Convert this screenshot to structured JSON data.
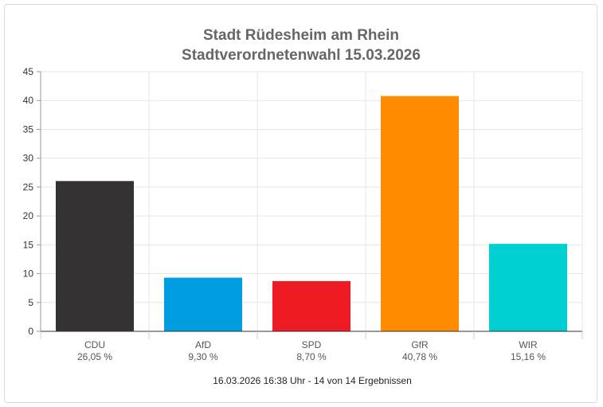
{
  "chart_data": {
    "type": "bar",
    "title": "Stadt Rüdesheim am Rhein",
    "subtitle": "Stadtverordnetenwahl 15.03.2026",
    "categories": [
      "CDU",
      "AfD",
      "SPD",
      "GfR",
      "WIR"
    ],
    "values": [
      26.05,
      9.3,
      8.7,
      40.78,
      15.16
    ],
    "value_labels": [
      "26,05 %",
      "9,30 %",
      "8,70 %",
      "40,78 %",
      "15,16 %"
    ],
    "colors": [
      "#333132",
      "#009ee0",
      "#ee1b24",
      "#ff8c00",
      "#00cfd1"
    ],
    "ylim": [
      0,
      45
    ],
    "yticks": [
      0,
      5,
      10,
      15,
      20,
      25,
      30,
      35,
      40,
      45
    ],
    "xlabel": "",
    "ylabel": "",
    "grid": true,
    "legend": "none"
  },
  "footer": "16.03.2026 16:38 Uhr - 14 von 14 Ergebnissen"
}
